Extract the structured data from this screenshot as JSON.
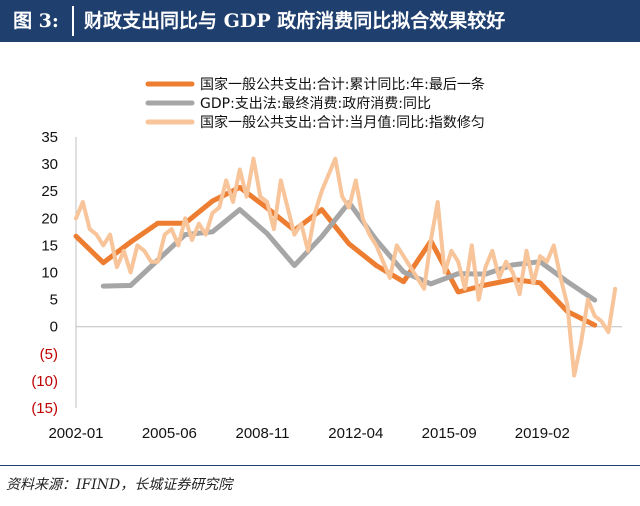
{
  "header": {
    "figure_label": "图 3:",
    "title": "财政支出同比与 GDP 政府消费同比拟合效果较好",
    "background": "#1f3f6f"
  },
  "source_note": "资料来源：IFIND，长城证券研究院",
  "chart_data": {
    "type": "line",
    "title": "",
    "xlabel": "",
    "ylabel": "",
    "ylim": [
      -15,
      35
    ],
    "y_ticks": [
      "35",
      "30",
      "25",
      "20",
      "15",
      "10",
      "5",
      "0",
      "(5)",
      "(10)",
      "(15)"
    ],
    "y_tick_values": [
      35,
      30,
      25,
      20,
      15,
      10,
      5,
      0,
      -5,
      -10,
      -15
    ],
    "negative_tick_color": "#c00000",
    "x_range": [
      2002.0,
      2022.0
    ],
    "x_ticks": [
      "2002-01",
      "2005-06",
      "2008-11",
      "2012-04",
      "2015-09",
      "2019-02"
    ],
    "x_tick_values": [
      2002.0,
      2005.42,
      2008.83,
      2012.25,
      2015.67,
      2019.08
    ],
    "grid": false,
    "legend_position": "top-right",
    "series": [
      {
        "name": "国家一般公共支出:合计:累计同比:年:最后一条",
        "color": "#ed7d31",
        "x": [
          2002.0,
          2003.0,
          2004.0,
          2005.0,
          2006.0,
          2007.0,
          2008.0,
          2009.0,
          2010.0,
          2011.0,
          2012.0,
          2013.0,
          2014.0,
          2015.0,
          2016.0,
          2017.0,
          2018.0,
          2019.0,
          2020.0,
          2021.0
        ],
        "y": [
          16.7,
          11.8,
          15.6,
          19.1,
          19.1,
          23.2,
          25.7,
          21.9,
          17.8,
          21.6,
          15.3,
          11.3,
          8.3,
          15.8,
          6.4,
          7.7,
          8.7,
          8.1,
          2.8,
          0.3
        ]
      },
      {
        "name": "GDP:支出法:最终消费:政府消费:同比",
        "color": "#a6a6a6",
        "x": [
          2003.0,
          2004.0,
          2005.0,
          2006.0,
          2007.0,
          2008.0,
          2009.0,
          2010.0,
          2011.0,
          2012.0,
          2013.0,
          2014.0,
          2015.0,
          2016.0,
          2017.0,
          2018.0,
          2019.0,
          2020.0,
          2021.0
        ],
        "y": [
          7.5,
          7.6,
          12.3,
          17.0,
          17.5,
          21.6,
          17.2,
          11.3,
          16.6,
          22.9,
          16.0,
          10.1,
          7.9,
          9.8,
          9.7,
          11.4,
          12.0,
          8.3,
          4.9
        ]
      },
      {
        "name": "国家一般公共支出:合计:当月值:同比:指数修匀",
        "color": "#f8c49a",
        "x": [
          2002.0,
          2002.25,
          2002.5,
          2002.75,
          2003.0,
          2003.25,
          2003.5,
          2003.75,
          2004.0,
          2004.25,
          2004.5,
          2004.75,
          2005.0,
          2005.25,
          2005.5,
          2005.75,
          2006.0,
          2006.25,
          2006.5,
          2006.75,
          2007.0,
          2007.25,
          2007.5,
          2007.75,
          2008.0,
          2008.25,
          2008.5,
          2008.75,
          2009.0,
          2009.25,
          2009.5,
          2009.75,
          2010.0,
          2010.25,
          2010.5,
          2010.75,
          2011.0,
          2011.25,
          2011.5,
          2011.75,
          2012.0,
          2012.25,
          2012.5,
          2012.75,
          2013.0,
          2013.25,
          2013.5,
          2013.75,
          2014.0,
          2014.25,
          2014.5,
          2014.75,
          2015.0,
          2015.25,
          2015.5,
          2015.75,
          2016.0,
          2016.25,
          2016.5,
          2016.75,
          2017.0,
          2017.25,
          2017.5,
          2017.75,
          2018.0,
          2018.25,
          2018.5,
          2018.75,
          2019.0,
          2019.25,
          2019.5,
          2019.75,
          2020.0,
          2020.25,
          2020.5,
          2020.75,
          2021.0,
          2021.25,
          2021.5,
          2021.75
        ],
        "y": [
          20,
          23,
          18,
          17,
          15,
          17,
          11,
          14,
          10,
          15,
          14,
          12,
          12,
          17,
          18,
          15,
          20,
          16,
          19,
          17,
          21,
          22,
          27,
          23,
          29,
          24,
          31,
          24,
          23,
          18,
          27,
          22,
          17,
          19,
          14,
          21,
          25,
          28,
          31,
          24,
          22,
          27,
          20,
          17,
          15,
          12,
          9,
          15,
          13,
          11,
          9,
          7,
          16,
          23,
          10,
          14,
          12,
          7,
          15,
          5,
          11,
          14,
          9,
          12,
          10,
          6,
          14,
          8,
          13,
          12,
          15,
          9,
          4,
          -9,
          -3,
          5,
          2,
          1,
          -1,
          7
        ]
      }
    ]
  }
}
